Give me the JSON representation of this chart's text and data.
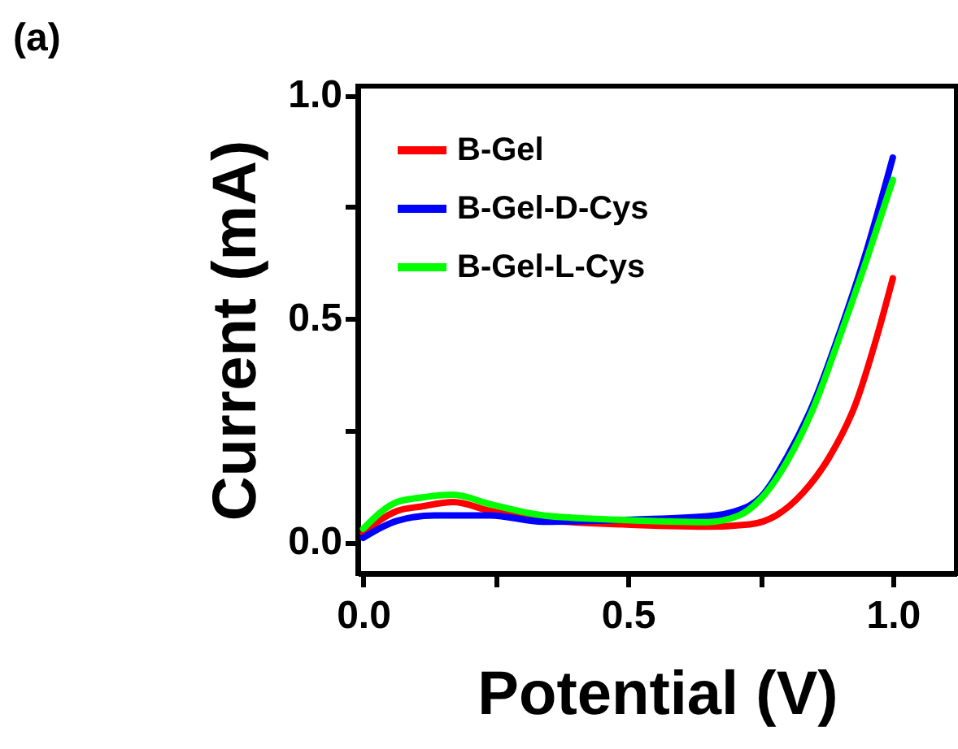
{
  "chart_data": {
    "type": "line",
    "xlabel": "Potential (V)",
    "ylabel": "Current (mA)",
    "annotations": [
      "(a)"
    ],
    "xlim": [
      -0.01,
      1.12
    ],
    "ylim": [
      -0.07,
      1.02
    ],
    "xticks": [
      {
        "value": 0,
        "label": "0.0"
      },
      {
        "value": 0.25,
        "label": null
      },
      {
        "value": 0.5,
        "label": "0.5"
      },
      {
        "value": 0.75,
        "label": null
      },
      {
        "value": 1,
        "label": "1.0"
      }
    ],
    "yticks": [
      {
        "value": 0,
        "label": "0.0"
      },
      {
        "value": 0.25,
        "label": null
      },
      {
        "value": 0.5,
        "label": "0.5"
      },
      {
        "value": 0.75,
        "label": null
      },
      {
        "value": 1,
        "label": "1.0"
      }
    ],
    "grid": false,
    "legend": "top left",
    "marker": "none",
    "line_style": "solid",
    "series": [
      {
        "name": "B-Gel",
        "color": "#ff0000",
        "x": [
          0,
          0.064,
          0.11,
          0.17,
          0.24,
          0.34,
          0.49,
          0.65,
          0.73,
          0.78,
          0.83,
          0.88,
          0.93,
          0.97,
          1.0
        ],
        "values": [
          0.02,
          0.07,
          0.08,
          0.09,
          0.07,
          0.05,
          0.04,
          0.035,
          0.04,
          0.06,
          0.11,
          0.19,
          0.31,
          0.46,
          0.59
        ]
      },
      {
        "name": "B-Gel-D-Cys",
        "color": "#0000ff",
        "x": [
          0,
          0.064,
          0.135,
          0.24,
          0.34,
          0.49,
          0.65,
          0.71,
          0.75,
          0.8,
          0.85,
          0.9,
          0.95,
          1.0
        ],
        "values": [
          0.01,
          0.048,
          0.06,
          0.06,
          0.046,
          0.05,
          0.058,
          0.072,
          0.1,
          0.19,
          0.31,
          0.47,
          0.65,
          0.86
        ]
      },
      {
        "name": "B-Gel-L-Cys",
        "color": "#00ff00",
        "x": [
          0,
          0.064,
          0.11,
          0.17,
          0.24,
          0.34,
          0.49,
          0.65,
          0.71,
          0.75,
          0.8,
          0.85,
          0.9,
          0.95,
          1.0
        ],
        "values": [
          0.03,
          0.09,
          0.1,
          0.106,
          0.085,
          0.06,
          0.05,
          0.045,
          0.06,
          0.096,
          0.18,
          0.3,
          0.46,
          0.63,
          0.81
        ]
      }
    ]
  }
}
